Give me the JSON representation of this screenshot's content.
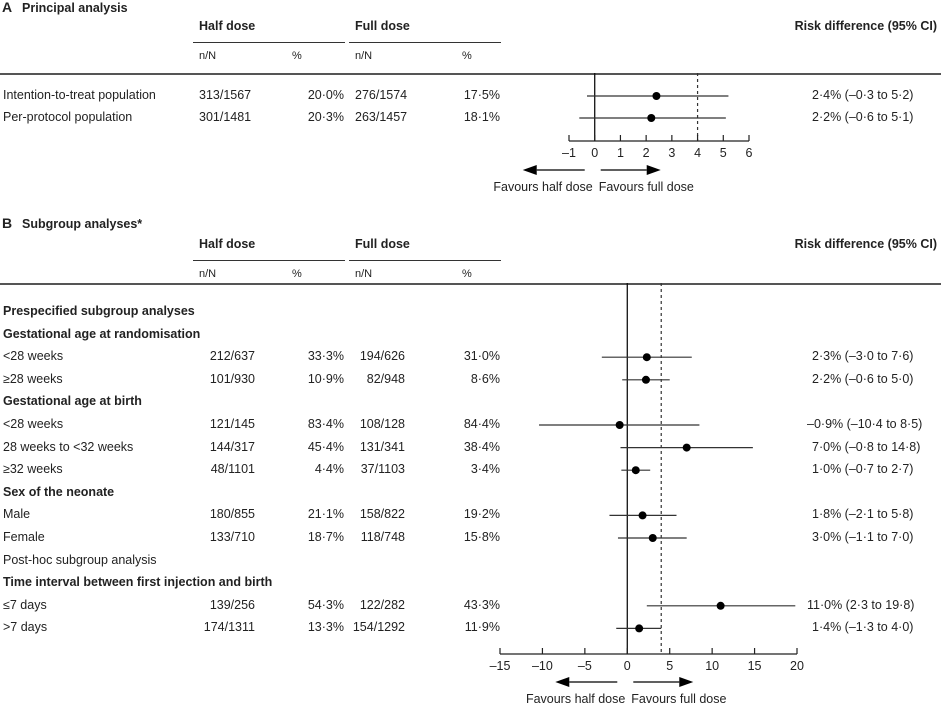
{
  "chart_data": [
    {
      "type": "forest",
      "panel": "A",
      "title": "Principal analysis",
      "columns": {
        "group1": "Half dose",
        "group2": "Full dose",
        "nN": "n/N",
        "pct": "%",
        "effect": "Risk difference (95% CI)"
      },
      "rows": [
        {
          "label": "Intention-to-treat population",
          "bold": false,
          "heading": false,
          "half_nN": "313/1567",
          "half_pct": "20·0%",
          "full_nN": "276/1574",
          "full_pct": "17·5%",
          "est": 2.4,
          "lo": -0.3,
          "hi": 5.2,
          "ci_text": "2·4% (–0·3 to 5·2)"
        },
        {
          "label": "Per-protocol population",
          "bold": false,
          "heading": false,
          "half_nN": "301/1481",
          "half_pct": "20·3%",
          "full_nN": "263/1457",
          "full_pct": "18·1%",
          "est": 2.2,
          "lo": -0.6,
          "hi": 5.1,
          "ci_text": "2·2% (–0·6 to 5·1)"
        }
      ],
      "xlim": [
        -1,
        6
      ],
      "xticks": [
        -1,
        0,
        1,
        2,
        3,
        4,
        5,
        6
      ],
      "xtick_labels": [
        "–1",
        "0",
        "1",
        "2",
        "3",
        "4",
        "5",
        "6"
      ],
      "reference_line": 0,
      "margin_line": 4,
      "favours_left": "Favours half dose",
      "favours_right": "Favours full dose"
    },
    {
      "type": "forest",
      "panel": "B",
      "title": "Subgroup analyses*",
      "columns": {
        "group1": "Half dose",
        "group2": "Full dose",
        "nN": "n/N",
        "pct": "%",
        "effect": "Risk difference (95% CI)"
      },
      "rows": [
        {
          "label": "Prespecified subgroup analyses",
          "bold": true,
          "heading": true
        },
        {
          "label": "Gestational age at randomisation",
          "bold": true,
          "heading": true
        },
        {
          "label": "<28 weeks",
          "bold": false,
          "heading": false,
          "half_nN": "212/637",
          "half_pct": "33·3%",
          "full_nN": "194/626",
          "full_pct": "31·0%",
          "est": 2.3,
          "lo": -3.0,
          "hi": 7.6,
          "ci_text": "2·3% (–3·0 to 7·6)"
        },
        {
          "label": "≥28 weeks",
          "bold": false,
          "heading": false,
          "half_nN": "101/930",
          "half_pct": "10·9%",
          "full_nN": "82/948",
          "full_pct": "8·6%",
          "est": 2.2,
          "lo": -0.6,
          "hi": 5.0,
          "ci_text": "2·2% (–0·6 to 5·0)"
        },
        {
          "label": "Gestational age at birth",
          "bold": true,
          "heading": true
        },
        {
          "label": "<28 weeks",
          "bold": false,
          "heading": false,
          "half_nN": "121/145",
          "half_pct": "83·4%",
          "full_nN": "108/128",
          "full_pct": "84·4%",
          "est": -0.9,
          "lo": -10.4,
          "hi": 8.5,
          "ci_text": "–0·9% (–10·4 to 8·5)"
        },
        {
          "label": "28 weeks to <32 weeks",
          "bold": false,
          "heading": false,
          "half_nN": "144/317",
          "half_pct": "45·4%",
          "full_nN": "131/341",
          "full_pct": "38·4%",
          "est": 7.0,
          "lo": -0.8,
          "hi": 14.8,
          "ci_text": "7·0% (–0·8 to 14·8)"
        },
        {
          "label": "≥32 weeks",
          "bold": false,
          "heading": false,
          "half_nN": "48/1101",
          "half_pct": "4·4%",
          "full_nN": "37/1103",
          "full_pct": "3·4%",
          "est": 1.0,
          "lo": -0.7,
          "hi": 2.7,
          "ci_text": "1·0% (–0·7 to 2·7)"
        },
        {
          "label": "Sex of the neonate",
          "bold": true,
          "heading": true
        },
        {
          "label": "Male",
          "bold": false,
          "heading": false,
          "half_nN": "180/855",
          "half_pct": "21·1%",
          "full_nN": "158/822",
          "full_pct": "19·2%",
          "est": 1.8,
          "lo": -2.1,
          "hi": 5.8,
          "ci_text": "1·8% (–2·1 to 5·8)"
        },
        {
          "label": "Female",
          "bold": false,
          "heading": false,
          "half_nN": "133/710",
          "half_pct": "18·7%",
          "full_nN": "118/748",
          "full_pct": "15·8%",
          "est": 3.0,
          "lo": -1.1,
          "hi": 7.0,
          "ci_text": "3·0% (–1·1 to 7·0)"
        },
        {
          "label": "Post-hoc subgroup analysis",
          "bold": false,
          "heading": true
        },
        {
          "label": "Time interval between first injection and birth",
          "bold": true,
          "heading": true
        },
        {
          "label": "≤7 days",
          "bold": false,
          "heading": false,
          "half_nN": "139/256",
          "half_pct": "54·3%",
          "full_nN": "122/282",
          "full_pct": "43·3%",
          "est": 11.0,
          "lo": 2.3,
          "hi": 19.8,
          "ci_text": "11·0% (2·3 to 19·8)"
        },
        {
          "label": ">7 days",
          "bold": false,
          "heading": false,
          "half_nN": "174/1311",
          "half_pct": "13·3%",
          "full_nN": "154/1292",
          "full_pct": "11·9%",
          "est": 1.4,
          "lo": -1.3,
          "hi": 4.0,
          "ci_text": "1·4% (–1·3 to 4·0)"
        }
      ],
      "xlim": [
        -15,
        20
      ],
      "xticks": [
        -15,
        -10,
        -5,
        0,
        5,
        10,
        15,
        20
      ],
      "xtick_labels": [
        "–15",
        "–10",
        "–5",
        "0",
        "5",
        "10",
        "15",
        "20"
      ],
      "reference_line": 0,
      "margin_line": 4,
      "favours_left": "Favours half dose",
      "favours_right": "Favours full dose"
    }
  ]
}
